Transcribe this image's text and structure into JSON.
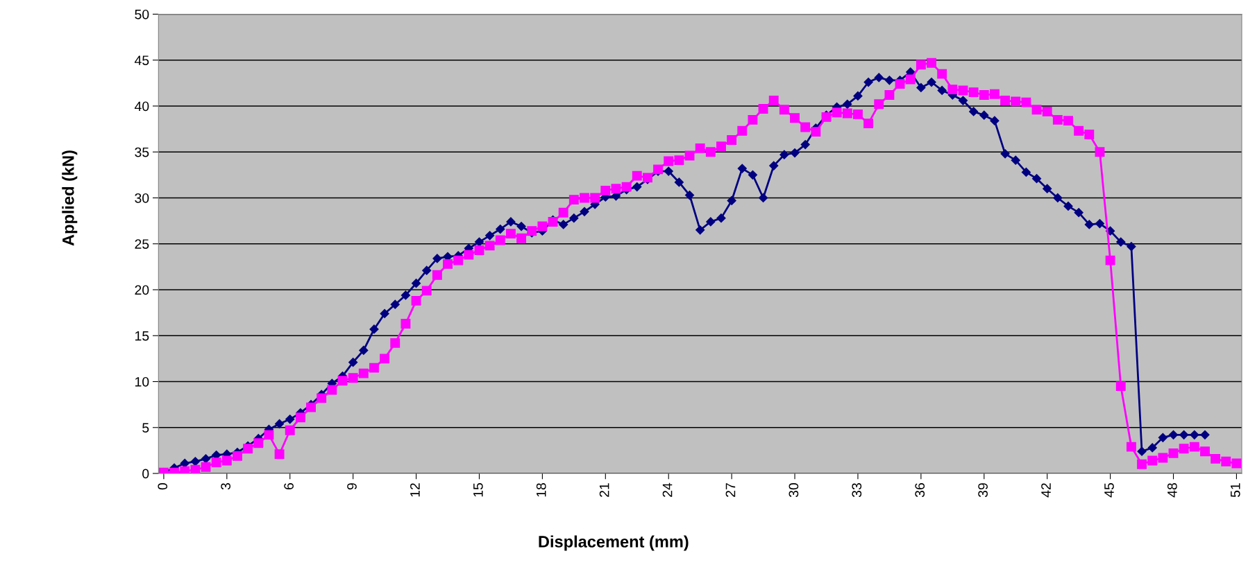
{
  "chart_data": {
    "type": "line",
    "xlabel": "Displacement (mm)",
    "ylabel": "Applied (kN)",
    "xlim": [
      -0.25,
      51.25
    ],
    "xticks": [
      0,
      3,
      6,
      9,
      12,
      15,
      18,
      21,
      24,
      27,
      30,
      33,
      36,
      39,
      42,
      45,
      48,
      51
    ],
    "ylim": [
      0,
      50
    ],
    "yticks": [
      0,
      5,
      10,
      15,
      20,
      25,
      30,
      35,
      40,
      45,
      50
    ],
    "grid": "y",
    "series": [
      {
        "color": "#000080",
        "marker": "diamond",
        "x": [
          0,
          0.5,
          1,
          1.5,
          2,
          2.5,
          3,
          3.5,
          4,
          4.5,
          5,
          5.5,
          6,
          6.5,
          7,
          7.5,
          8,
          8.5,
          9,
          9.5,
          10,
          10.5,
          11,
          11.5,
          12,
          12.5,
          13,
          13.5,
          14,
          14.5,
          15,
          15.5,
          16,
          16.5,
          17,
          17.5,
          18,
          18.5,
          19,
          19.5,
          20,
          20.5,
          21,
          21.5,
          22,
          22.5,
          23,
          23.5,
          24,
          24.5,
          25,
          25.5,
          26,
          26.5,
          27,
          27.5,
          28,
          28.5,
          29,
          29.5,
          30,
          30.5,
          31,
          31.5,
          32,
          32.5,
          33,
          33.5,
          34,
          34.5,
          35,
          35.5,
          36,
          36.5,
          37,
          37.5,
          38,
          38.5,
          39,
          39.5,
          40,
          40.5,
          41,
          41.5,
          42,
          42.5,
          43,
          43.5,
          44,
          44.5,
          45,
          45.5,
          46,
          46.5,
          47,
          47.5,
          48,
          48.5,
          49,
          49.5
        ],
        "values": [
          0.1,
          0.6,
          1.1,
          1.3,
          1.6,
          2.0,
          2.1,
          2.3,
          3.0,
          3.8,
          4.8,
          5.4,
          5.9,
          6.6,
          7.5,
          8.6,
          9.8,
          10.6,
          12.1,
          13.4,
          15.7,
          17.4,
          18.4,
          19.4,
          20.7,
          22.1,
          23.4,
          23.6,
          23.7,
          24.5,
          25.2,
          25.9,
          26.6,
          27.4,
          26.9,
          26.2,
          26.4,
          27.6,
          27.1,
          27.8,
          28.5,
          29.3,
          30.1,
          30.2,
          30.9,
          31.2,
          32.0,
          32.9,
          32.9,
          31.7,
          30.3,
          26.5,
          27.4,
          27.8,
          29.7,
          33.2,
          32.5,
          30.0,
          33.5,
          34.7,
          34.9,
          35.8,
          37.6,
          39.0,
          39.9,
          40.2,
          41.1,
          42.6,
          43.1,
          42.8,
          42.8,
          43.7,
          42.0,
          42.6,
          41.7,
          41.2,
          40.6,
          39.4,
          39.0,
          38.4,
          34.8,
          34.1,
          32.8,
          32.1,
          31.0,
          30.0,
          29.1,
          28.4,
          27.1,
          27.2,
          26.4,
          25.2,
          24.7,
          2.4,
          2.8,
          3.9,
          4.2,
          4.2,
          4.2,
          4.2
        ]
      },
      {
        "color": "#ff00ff",
        "marker": "square",
        "x": [
          0,
          0.5,
          1,
          1.5,
          2,
          2.5,
          3,
          3.5,
          4,
          4.5,
          5,
          5.5,
          6,
          6.5,
          7,
          7.5,
          8,
          8.5,
          9,
          9.5,
          10,
          10.5,
          11,
          11.5,
          12,
          12.5,
          13,
          13.5,
          14,
          14.5,
          15,
          15.5,
          16,
          16.5,
          17,
          17.5,
          18,
          18.5,
          19,
          19.5,
          20,
          20.5,
          21,
          21.5,
          22,
          22.5,
          23,
          23.5,
          24,
          24.5,
          25,
          25.5,
          26,
          26.5,
          27,
          27.5,
          28,
          28.5,
          29,
          29.5,
          30,
          30.5,
          31,
          31.5,
          32,
          32.5,
          33,
          33.5,
          34,
          34.5,
          35,
          35.5,
          36,
          36.5,
          37,
          37.5,
          38,
          38.5,
          39,
          39.5,
          40,
          40.5,
          41,
          41.5,
          42,
          42.5,
          43,
          43.5,
          44,
          44.5,
          45,
          45.5,
          46,
          46.5,
          47,
          47.5,
          48,
          48.5,
          49,
          49.5,
          50,
          50.5,
          51
        ],
        "values": [
          0.1,
          0.1,
          0.25,
          0.4,
          0.7,
          1.2,
          1.4,
          1.9,
          2.7,
          3.3,
          4.2,
          2.1,
          4.7,
          6.1,
          7.2,
          8.2,
          9.1,
          10.1,
          10.4,
          10.9,
          11.5,
          12.5,
          14.2,
          16.3,
          18.8,
          19.9,
          21.6,
          22.8,
          23.2,
          23.8,
          24.3,
          24.8,
          25.4,
          26.1,
          25.6,
          26.4,
          26.9,
          27.4,
          28.4,
          29.8,
          30.0,
          30.0,
          30.8,
          31.0,
          31.2,
          32.4,
          32.2,
          33.1,
          34.0,
          34.1,
          34.6,
          35.4,
          35.0,
          35.6,
          36.3,
          37.3,
          38.5,
          39.7,
          40.6,
          39.6,
          38.7,
          37.7,
          37.2,
          38.8,
          39.3,
          39.2,
          39.1,
          38.1,
          40.2,
          41.2,
          42.4,
          42.9,
          44.5,
          44.7,
          43.5,
          41.8,
          41.7,
          41.5,
          41.2,
          41.3,
          40.6,
          40.5,
          40.4,
          39.6,
          39.4,
          38.5,
          38.4,
          37.3,
          36.9,
          35.0,
          23.2,
          9.5,
          2.9,
          1.0,
          1.4,
          1.7,
          2.2,
          2.7,
          2.9,
          2.4,
          1.6,
          1.3,
          1.1
        ]
      }
    ]
  }
}
